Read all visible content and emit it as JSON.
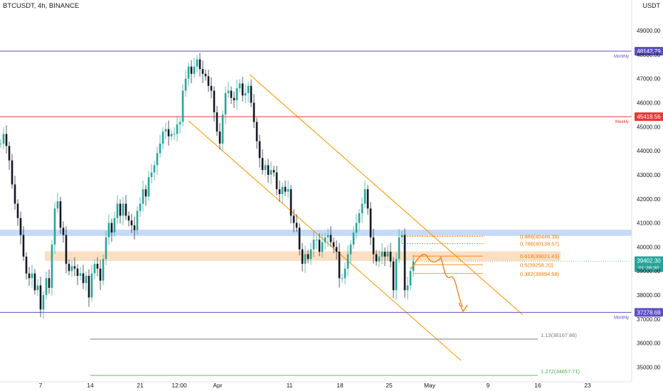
{
  "header": {
    "title": "BTCUSDT, 4h, BINANCE",
    "currency": "USDT"
  },
  "colors": {
    "up": "#26a69a",
    "down": "#131722",
    "monthly": "#5b4fc4",
    "weekly": "#e53935",
    "fib": "#f57c00",
    "channel": "#ff9800",
    "blue_zone": "#bcd3f7",
    "orange_zone": "#fcd9b8",
    "ext_gray": "#787b86",
    "ext_green": "#4caf50",
    "price_tag": "#26a69a"
  },
  "levels": [
    {
      "price": 48142.79,
      "label": "48142.79",
      "note": "Monthly",
      "color": "#5b4fc4"
    },
    {
      "price": 45418.56,
      "label": "45418.56",
      "note": "Weekly",
      "color": "#e53935"
    },
    {
      "price": 37278.69,
      "label": "37278.69",
      "note": "Monthly",
      "color": "#5b4fc4"
    }
  ],
  "current_price": {
    "label": "39402.30",
    "countdown": "01:28:30",
    "price": 39402.3
  },
  "zones": [
    {
      "name": "blue-zone",
      "top": 40720,
      "bottom": 40460,
      "color": "#bcd3f7"
    },
    {
      "name": "orange-zone",
      "top": 39820,
      "bottom": 39420,
      "color": "#fcd9b8"
    }
  ],
  "fib": [
    {
      "label": "0.886(40446.39)",
      "price": 40446.39
    },
    {
      "label": "0.786(40138.57)",
      "price": 40138.57
    },
    {
      "label": "0.618(39621.43)",
      "price": 39621.43
    },
    {
      "label": "0.5(39258.20)",
      "price": 39258.2
    },
    {
      "label": "0.382(38894.98)",
      "price": 38894.98
    }
  ],
  "extensions": [
    {
      "label": "1.13(36167.86)",
      "price": 36167.86,
      "color": "#787b86"
    },
    {
      "label": "1.272(34657.71)",
      "price": 34657.71,
      "color": "#4caf50"
    }
  ],
  "chart_data": {
    "type": "line",
    "title": "BTCUSDT, 4h, BINANCE",
    "x_ticks": [
      "7",
      "14",
      "21",
      "12:00",
      "Apr",
      "11",
      "18",
      "25",
      "May",
      "9",
      "16",
      "23"
    ],
    "y_ticks": [
      35000,
      36000,
      37000,
      38000,
      39000,
      40000,
      41000,
      42000,
      43000,
      44000,
      45000,
      46000,
      47000,
      48000,
      49000
    ],
    "ylim": [
      34400,
      50100
    ],
    "series": [
      {
        "x": [
          0,
          4,
          8,
          12,
          16,
          20,
          24,
          28,
          32,
          36,
          40,
          44,
          48,
          52,
          56,
          60,
          64,
          68,
          72,
          76,
          80,
          84,
          88,
          92,
          96,
          100,
          104,
          108,
          112,
          116,
          120,
          124,
          128,
          132,
          136,
          140,
          144,
          148,
          152,
          156,
          160,
          164,
          168,
          172,
          176,
          180,
          184,
          188,
          192,
          196,
          200,
          204,
          208,
          212,
          216,
          220,
          224,
          228,
          232,
          236,
          240,
          244,
          248,
          252,
          256,
          260,
          264,
          268,
          272,
          276,
          280,
          284,
          288,
          292,
          296,
          300,
          304,
          308,
          312,
          316,
          320,
          324,
          328,
          332,
          336,
          340,
          344,
          348,
          352,
          356,
          360,
          364,
          368,
          372,
          376,
          380,
          384,
          388,
          392,
          396,
          400,
          404,
          408,
          412,
          416,
          420,
          424,
          428,
          432,
          436,
          440,
          444,
          448,
          452,
          456,
          460,
          464,
          468,
          472,
          476,
          480,
          484,
          488,
          492,
          496,
          500,
          504,
          508,
          512,
          516,
          520,
          524,
          528,
          532,
          536,
          540,
          544,
          548,
          552,
          556,
          560,
          564,
          568,
          572,
          576,
          580
        ],
        "values": [
          44300,
          44700,
          44200,
          43600,
          42600,
          41800,
          41200,
          40500,
          39600,
          38900,
          38700,
          38900,
          38200,
          38400,
          37400,
          38000,
          38700,
          38300,
          40100,
          41600,
          41900,
          40800,
          40500,
          39300,
          39000,
          39200,
          39100,
          38800,
          38900,
          38500,
          38800,
          37900,
          38900,
          39300,
          39100,
          38600,
          39500,
          40400,
          41000,
          40600,
          41200,
          41800,
          41300,
          41800,
          41300,
          41100,
          40900,
          40700,
          41500,
          41800,
          42400,
          42100,
          42900,
          43100,
          43400,
          43900,
          44300,
          44800,
          44900,
          44600,
          44700,
          44700,
          45100,
          45200,
          46500,
          47000,
          47500,
          47200,
          47500,
          47800,
          47400,
          47200,
          47100,
          46700,
          46500,
          45600,
          44800,
          44300,
          45500,
          46400,
          46500,
          46200,
          46100,
          46600,
          46800,
          46300,
          46400,
          46700,
          46000,
          45200,
          44400,
          43700,
          43200,
          43400,
          43000,
          43200,
          43100,
          42400,
          42200,
          42500,
          42300,
          42400,
          41300,
          41000,
          40800,
          39900,
          39300,
          39700,
          39500,
          39900,
          40300,
          40300,
          39800,
          40200,
          40400,
          40500,
          40200,
          40000,
          39800,
          38700,
          38700,
          39100,
          39700,
          40100,
          40600,
          41000,
          41400,
          41800,
          42400,
          41600,
          40400,
          39700,
          39400,
          39600,
          39800,
          39600,
          39800,
          39400,
          38200,
          39500,
          40400,
          40500,
          38200,
          38400,
          39000,
          39400
        ]
      }
    ]
  }
}
